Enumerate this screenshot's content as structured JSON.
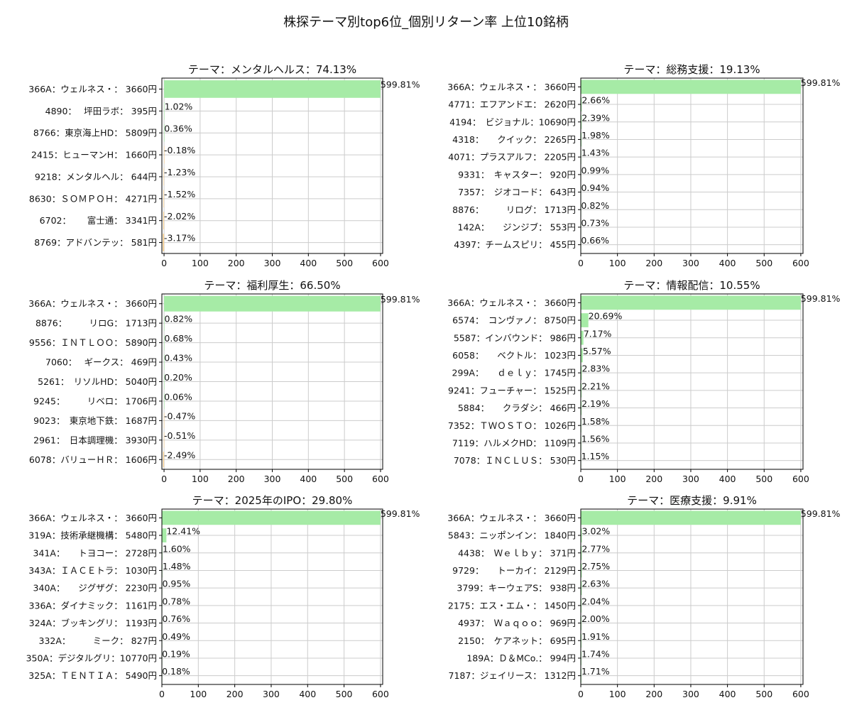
{
  "figure": {
    "suptitle": "株探テーマ別top6位_個別リターン率 上位10銘柄"
  },
  "chart_data": [
    {
      "type": "bar",
      "orientation": "horizontal",
      "title": "テーマ：メンタルヘルス：74.13%",
      "categories": [
        "366A：ウェルネス・： 3660円",
        "4890：　 坪田ラボ： 395円",
        "8766：東京海上HD： 5809円",
        "2415：ヒューマンH： 1660円",
        "9218：メンタルヘル： 644円",
        "8630：ＳＯＭＰＯＨ： 4271円",
        "6702：　　 富士通： 3341円",
        "8769：アドバンテッ： 581円"
      ],
      "values": [
        599.81,
        1.02,
        0.36,
        -0.18,
        -1.23,
        -1.52,
        -2.02,
        -3.17
      ],
      "labels": [
        "599.81%",
        "1.02%",
        "0.36%",
        "-0.18%",
        "-1.23%",
        "-1.52%",
        "-2.02%",
        "-3.17%"
      ],
      "xlim": [
        -6,
        606
      ],
      "xticks": [
        0,
        100,
        200,
        300,
        400,
        500,
        600
      ],
      "grid": true
    },
    {
      "type": "bar",
      "orientation": "horizontal",
      "title": "テーマ：総務支援：19.13%",
      "categories": [
        "366A：ウェルネス・： 3660円",
        "4771：エフアンドエ： 2620円",
        "4194：　ビジョナル：10690円",
        "4318：　　クイック： 2265円",
        "4071：プラスアルフ： 2205円",
        "9331：　キャスター： 920円",
        "7357：　ジオコード： 643円",
        "8876：　　　リログ： 1713円",
        "142A：　　ジンジブ： 553円",
        "4397：チームスピリ： 455円"
      ],
      "values": [
        599.81,
        2.66,
        2.39,
        1.98,
        1.43,
        0.99,
        0.94,
        0.82,
        0.73,
        0.66
      ],
      "labels": [
        "599.81%",
        "2.66%",
        "2.39%",
        "1.98%",
        "1.43%",
        "0.99%",
        "0.94%",
        "0.82%",
        "0.73%",
        "0.66%"
      ],
      "xlim": [
        0,
        606
      ],
      "xticks": [
        0,
        100,
        200,
        300,
        400,
        500,
        600
      ],
      "grid": true
    },
    {
      "type": "bar",
      "orientation": "horizontal",
      "title": "テーマ：福利厚生：66.50%",
      "categories": [
        "366A：ウェルネス・： 3660円",
        "8876：　　　リロG： 1713円",
        "9556：ＩＮＴＬＯＯ： 5890円",
        "7060：　 ギークス： 469円",
        "5261：　リソルHD： 5040円",
        "9245：　　　リベロ： 1706円",
        "9023：　東京地下鉄： 1687円",
        "2961：　日本調理機： 3930円",
        "6078：バリューＨＲ： 1606円"
      ],
      "values": [
        599.81,
        0.82,
        0.68,
        0.43,
        0.2,
        0.06,
        -0.47,
        -0.51,
        -2.49
      ],
      "labels": [
        "599.81%",
        "0.82%",
        "0.68%",
        "0.43%",
        "0.20%",
        "0.06%",
        "-0.47%",
        "-0.51%",
        "-2.49%"
      ],
      "xlim": [
        -6,
        606
      ],
      "xticks": [
        0,
        100,
        200,
        300,
        400,
        500,
        600
      ],
      "grid": true
    },
    {
      "type": "bar",
      "orientation": "horizontal",
      "title": "テーマ：情報配信：10.55%",
      "categories": [
        "366A：ウェルネス・： 3660円",
        "6574：　コンヴァノ： 8750円",
        "5587：インバウンド： 986円",
        "6058：　　ベクトル： 1023円",
        "299A：　　ｄｅｌｙ： 1745円",
        "9241：フューチャー： 1525円",
        "5884：　　クラダシ： 466円",
        "7352：ＴＷＯＳＴＯ： 1026円",
        "7119：ハルメクHD： 1109円",
        "7078：ＩＮＣＬＵＳ： 530円"
      ],
      "values": [
        599.81,
        20.69,
        7.17,
        5.57,
        2.83,
        2.21,
        2.19,
        1.58,
        1.56,
        1.15
      ],
      "labels": [
        "599.81%",
        "20.69%",
        "7.17%",
        "5.57%",
        "2.83%",
        "2.21%",
        "2.19%",
        "1.58%",
        "1.56%",
        "1.15%"
      ],
      "xlim": [
        0,
        606
      ],
      "xticks": [
        0,
        100,
        200,
        300,
        400,
        500,
        600
      ],
      "grid": true
    },
    {
      "type": "bar",
      "orientation": "horizontal",
      "title": "テーマ：2025年のIPO：29.80%",
      "categories": [
        "366A：ウェルネス・： 3660円",
        "319A：技術承継機構： 5480円",
        "341A：　　トヨコー： 2728円",
        "343A：ＩＡＣＥトラ： 1030円",
        "340A：　　ジグザグ： 2230円",
        "336A：ダイナミック： 1161円",
        "324A：ブッキングリ： 1193円",
        "332A：　　　ミーク： 827円",
        "350A：デジタルグリ：10770円",
        "325A：ＴＥＮＴＩＡ： 5490円"
      ],
      "values": [
        599.81,
        12.41,
        1.6,
        1.48,
        0.95,
        0.78,
        0.76,
        0.49,
        0.19,
        0.18
      ],
      "labels": [
        "599.81%",
        "12.41%",
        "1.60%",
        "1.48%",
        "0.95%",
        "0.78%",
        "0.76%",
        "0.49%",
        "0.19%",
        "0.18%"
      ],
      "xlim": [
        0,
        606
      ],
      "xticks": [
        0,
        100,
        200,
        300,
        400,
        500,
        600
      ],
      "grid": true
    },
    {
      "type": "bar",
      "orientation": "horizontal",
      "title": "テーマ：医療支援：9.91%",
      "categories": [
        "366A：ウェルネス・： 3660円",
        "5843：ニッポンイン： 1840円",
        "4438：　Ｗｅｌｂｙ： 371円",
        "9729：　　トーカイ： 2129円",
        "3799：キーウェアS： 938円",
        "2175：エス・エム・： 1450円",
        "4937：　Ｗａｑｏｏ： 969円",
        "2150：　ケアネット： 695円",
        "189A：Ｄ＆MCo.： 994円",
        "7187：ジェイリース： 1312円"
      ],
      "values": [
        599.81,
        3.02,
        2.77,
        2.75,
        2.63,
        2.04,
        2.0,
        1.91,
        1.74,
        1.71
      ],
      "labels": [
        "599.81%",
        "3.02%",
        "2.77%",
        "2.75%",
        "2.63%",
        "2.04%",
        "2.00%",
        "1.91%",
        "1.74%",
        "1.71%"
      ],
      "xlim": [
        0,
        606
      ],
      "xticks": [
        0,
        100,
        200,
        300,
        400,
        500,
        600
      ],
      "grid": true
    }
  ],
  "colors": {
    "positive_bar": "#a6eba6",
    "negative_bar": "#f5cc8a",
    "grid": "#cccccc",
    "axis": "#000000",
    "text": "#111111"
  }
}
